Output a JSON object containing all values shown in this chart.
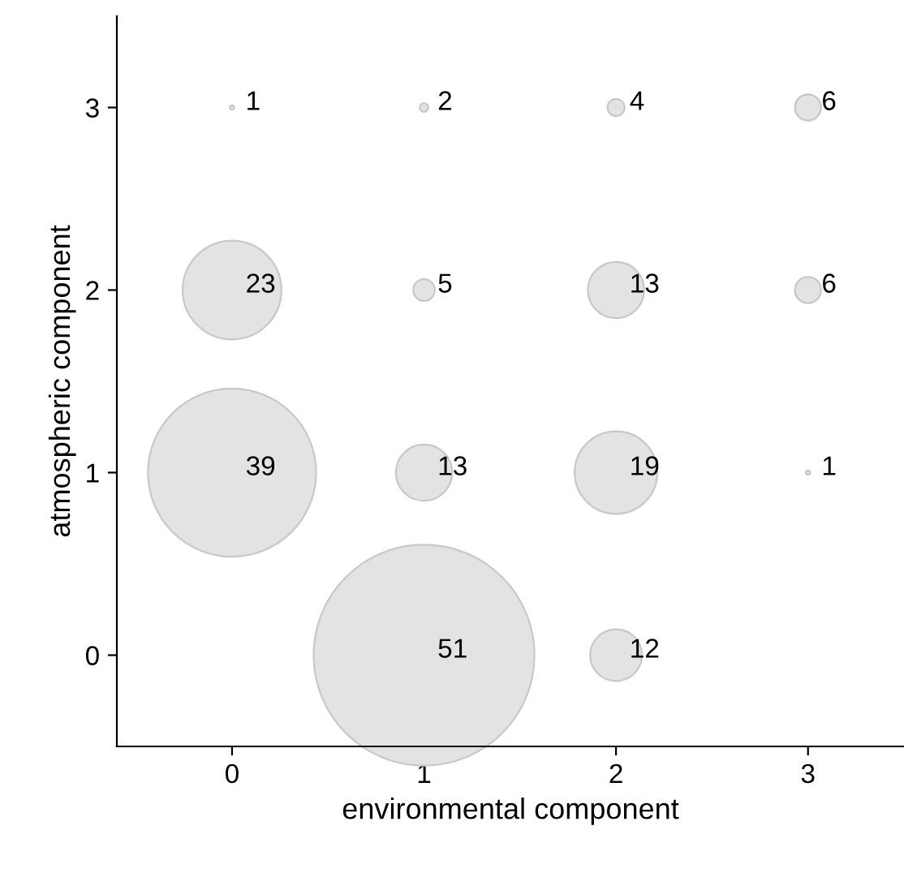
{
  "chart_data": {
    "type": "bubble",
    "xlabel": "environmental component",
    "ylabel": "atmospheric component",
    "x": [
      0,
      1,
      2,
      3,
      0,
      1,
      2,
      3,
      0,
      1,
      2,
      3,
      1,
      2
    ],
    "values": [
      3,
      3,
      3,
      3,
      2,
      2,
      2,
      2,
      1,
      1,
      1,
      1,
      0,
      0
    ],
    "sizes": [
      0.0004,
      0.0015,
      0.006,
      0.014,
      0.2,
      0.0096,
      0.065,
      0.014,
      0.58,
      0.065,
      0.14,
      0.0004,
      1,
      0.055
    ],
    "annotations": [
      {
        "text": "1",
        "x": 0,
        "y": 3
      },
      {
        "text": "2",
        "x": 1,
        "y": 3
      },
      {
        "text": "4",
        "x": 2,
        "y": 3
      },
      {
        "text": "6",
        "x": 3,
        "y": 3
      },
      {
        "text": "23",
        "x": 0,
        "y": 2
      },
      {
        "text": "5",
        "x": 1,
        "y": 2
      },
      {
        "text": "13",
        "x": 2,
        "y": 2
      },
      {
        "text": "6",
        "x": 3,
        "y": 2
      },
      {
        "text": "39",
        "x": 0,
        "y": 1
      },
      {
        "text": "13",
        "x": 1,
        "y": 1
      },
      {
        "text": "19",
        "x": 2,
        "y": 1
      },
      {
        "text": "1",
        "x": 3,
        "y": 1
      },
      {
        "text": "51",
        "x": 1,
        "y": 0
      },
      {
        "text": "12",
        "x": 2,
        "y": 0
      }
    ],
    "color": "#e3e3e3",
    "xlim": [
      -0.6,
      3.5
    ],
    "ylim": [
      -0.5,
      3.5
    ],
    "xticks": [
      0,
      1,
      2,
      3
    ],
    "yticks": [
      0,
      1,
      2,
      3
    ],
    "grid": false,
    "legend": false
  }
}
